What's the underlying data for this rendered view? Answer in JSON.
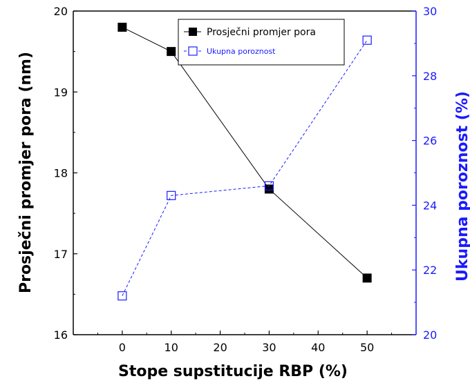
{
  "chart_data": {
    "type": "line",
    "xlabel": "Stope supstitucije RBP (%)",
    "ylabel": "Prosječni promjer pora (nm)",
    "y2label": "Ukupna poroznost (%)",
    "xlim": [
      -10,
      60
    ],
    "ylim": [
      16,
      20
    ],
    "y2lim": [
      20,
      30
    ],
    "x_ticks": [
      0,
      10,
      20,
      30,
      40,
      50
    ],
    "y_ticks": [
      16,
      17,
      18,
      19,
      20
    ],
    "y2_ticks": [
      20,
      22,
      24,
      26,
      28,
      30
    ],
    "legend_position": "top-center",
    "series": [
      {
        "name": "Prosječni promjer pora",
        "axis": "left",
        "x": [
          0,
          10,
          30,
          50
        ],
        "values": [
          19.8,
          19.5,
          17.8,
          16.7
        ],
        "color": "#000000",
        "marker": "filled-square",
        "line": "solid"
      },
      {
        "name": "Ukupna poroznost",
        "axis": "right",
        "x": [
          0,
          10,
          30,
          50
        ],
        "values": [
          21.2,
          24.3,
          24.6,
          29.1
        ],
        "color": "#1a1aff",
        "marker": "open-square",
        "line": "dashed"
      }
    ]
  }
}
